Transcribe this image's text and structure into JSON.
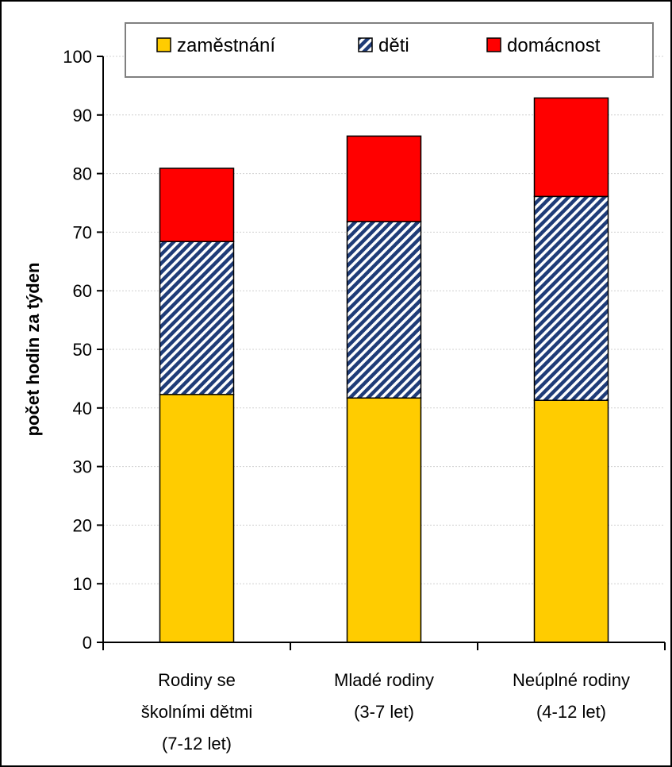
{
  "chart_data": {
    "type": "bar",
    "stacked": true,
    "categories": [
      [
        "Rodiny se",
        "školními dětmi",
        "(7-12 let)"
      ],
      [
        "Mladé rodiny",
        "(3-7 let)"
      ],
      [
        "Neúplné rodiny",
        "(4-12 let)"
      ]
    ],
    "series": [
      {
        "name": "zaměstnání",
        "values": [
          42.3,
          41.7,
          41.3
        ],
        "color": "#ffcc00",
        "pattern": "solid"
      },
      {
        "name": "děti",
        "values": [
          26.1,
          30.1,
          34.8
        ],
        "color": "#1f3c78",
        "pattern": "diagonal-hatch"
      },
      {
        "name": "domácnost",
        "values": [
          12.5,
          14.6,
          16.8
        ],
        "color": "#ff0000",
        "pattern": "solid"
      }
    ],
    "ylabel": "počet hodin za týden",
    "xlabel": "",
    "title": "",
    "ylim": [
      0,
      100
    ],
    "yticks": [
      0,
      10,
      20,
      30,
      40,
      50,
      60,
      70,
      80,
      90,
      100
    ],
    "grid": true,
    "legend": "top"
  }
}
